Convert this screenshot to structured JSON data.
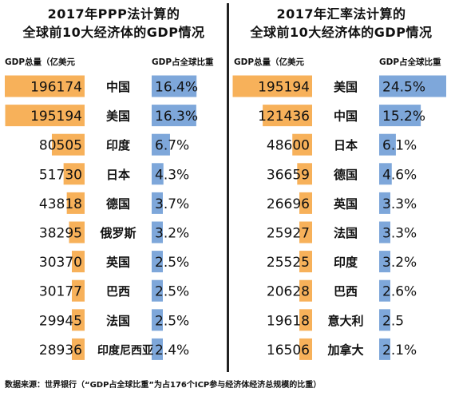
{
  "footer": "数据来源：世界银行（“GDP占全球比重”为占176个ICP参与经济体经济总规模的比重）",
  "colors": {
    "gdp_bar": "#f7b15a",
    "share_bar": "#7ea7da",
    "text": "#111111"
  },
  "chart_data": [
    {
      "type": "table",
      "title_line1": "2017年PPP法计算的",
      "title_line2": "全球前10大经济体的GDP情况",
      "col_gdp_label": "GDP总量（亿美元",
      "col_share_label": "GDP占全球比重",
      "rows": [
        {
          "gdp": 196174,
          "gdp_text": "196174",
          "country": "中国",
          "share": 16.4,
          "share_text": "16.4%"
        },
        {
          "gdp": 195194,
          "gdp_text": "195194",
          "country": "美国",
          "share": 16.3,
          "share_text": "16.3%"
        },
        {
          "gdp": 80505,
          "gdp_text": "80505",
          "country": "印度",
          "share": 6.7,
          "share_text": "6.7%"
        },
        {
          "gdp": 51730,
          "gdp_text": "51730",
          "country": "日本",
          "share": 4.3,
          "share_text": "4.3%"
        },
        {
          "gdp": 43818,
          "gdp_text": "43818",
          "country": "德国",
          "share": 3.7,
          "share_text": "3.7%"
        },
        {
          "gdp": 38295,
          "gdp_text": "38295",
          "country": "俄罗斯",
          "share": 3.2,
          "share_text": "3.2%"
        },
        {
          "gdp": 30370,
          "gdp_text": "30370",
          "country": "英国",
          "share": 2.5,
          "share_text": "2.5%"
        },
        {
          "gdp": 30177,
          "gdp_text": "30177",
          "country": "巴西",
          "share": 2.5,
          "share_text": "2.5%"
        },
        {
          "gdp": 29945,
          "gdp_text": "29945",
          "country": "法国",
          "share": 2.5,
          "share_text": "2.5%"
        },
        {
          "gdp": 28936,
          "gdp_text": "28936",
          "country": "印度尼西亚",
          "share": 2.4,
          "share_text": "2.4%"
        }
      ]
    },
    {
      "type": "table",
      "title_line1": "2017年汇率法计算的",
      "title_line2": "全球前10大经济体的GDP情况",
      "col_gdp_label": "GDP总量（亿美元",
      "col_share_label": "GDP占全球比重",
      "rows": [
        {
          "gdp": 195194,
          "gdp_text": "195194",
          "country": "美国",
          "share": 24.5,
          "share_text": "24.5%"
        },
        {
          "gdp": 121436,
          "gdp_text": "121436",
          "country": "中国",
          "share": 15.2,
          "share_text": "15.2%"
        },
        {
          "gdp": 48600,
          "gdp_text": "48600",
          "country": "日本",
          "share": 6.1,
          "share_text": "6.1%"
        },
        {
          "gdp": 36659,
          "gdp_text": "36659",
          "country": "德国",
          "share": 4.6,
          "share_text": "4.6%"
        },
        {
          "gdp": 26696,
          "gdp_text": "26696",
          "country": "英国",
          "share": 3.3,
          "share_text": "3.3%"
        },
        {
          "gdp": 25927,
          "gdp_text": "25927",
          "country": "法国",
          "share": 3.3,
          "share_text": "3.3%"
        },
        {
          "gdp": 25525,
          "gdp_text": "25525",
          "country": "印度",
          "share": 3.2,
          "share_text": "3.2%"
        },
        {
          "gdp": 20628,
          "gdp_text": "20628",
          "country": "巴西",
          "share": 2.6,
          "share_text": "2.6%"
        },
        {
          "gdp": 19618,
          "gdp_text": "19618",
          "country": "意大利",
          "share": 2.5,
          "share_text": "2.5"
        },
        {
          "gdp": 16506,
          "gdp_text": "16506",
          "country": "加拿大",
          "share": 2.1,
          "share_text": "2.1%"
        }
      ]
    }
  ]
}
